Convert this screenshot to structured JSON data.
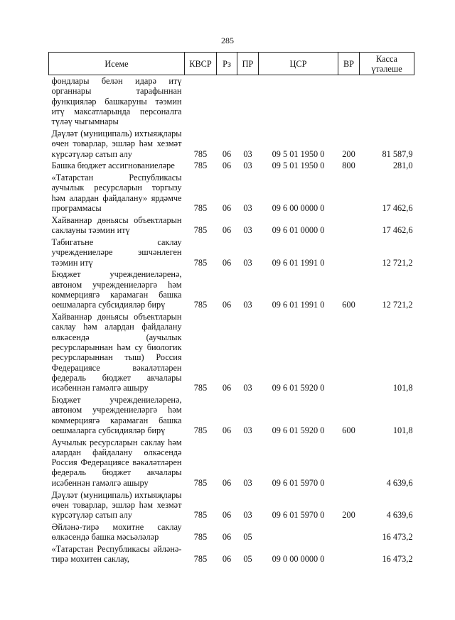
{
  "page_number": "285",
  "columns": [
    "Исеме",
    "КВСР",
    "Рз",
    "ПР",
    "ЦСР",
    "ВР",
    "Касса үтәлеше"
  ],
  "rows": [
    {
      "name": "фондлары белән идарә итү органнары тарафыннан функцияләр башкаруны тәэмин итү максатларында персоналга түләү чыгымнары",
      "kvsr": "",
      "rz": "",
      "pr": "",
      "csr": "",
      "vr": "",
      "sum": ""
    },
    {
      "name": "Дәүләт (муниципаль) ихтыяҗлары өчен товарлар, эшләр һәм хезмәт күрсәтүләр сатып алу",
      "kvsr": "785",
      "rz": "06",
      "pr": "03",
      "csr": "09 5 01 1950 0",
      "vr": "200",
      "sum": "81 587,9"
    },
    {
      "name": "Башка бюджет ассигнованиеләре",
      "kvsr": "785",
      "rz": "06",
      "pr": "03",
      "csr": "09 5 01 1950 0",
      "vr": "800",
      "sum": "281,0"
    },
    {
      "name": "«Татарстан Республикасы аучылык ресурсларын торгызу һәм алардан файдалану» ярдәмче программасы",
      "kvsr": "785",
      "rz": "06",
      "pr": "03",
      "csr": "09 6 00 0000 0",
      "vr": "",
      "sum": "17 462,6"
    },
    {
      "name": "Хайваннар дөньясы объектларын саклауны тәэмин итү",
      "kvsr": "785",
      "rz": "06",
      "pr": "03",
      "csr": "09 6 01 0000 0",
      "vr": "",
      "sum": "17 462,6"
    },
    {
      "name": "Табигатьне саклау учреждениеләре эшчәнлеген тәэмин итү",
      "kvsr": "785",
      "rz": "06",
      "pr": "03",
      "csr": "09 6 01 1991 0",
      "vr": "",
      "sum": "12 721,2"
    },
    {
      "name": "Бюджет учреждениеләренә, автоном учреждениеләргә һәм коммерциягә карамаган башка оешмаларга субсидияләр бирү",
      "kvsr": "785",
      "rz": "06",
      "pr": "03",
      "csr": "09 6 01 1991 0",
      "vr": "600",
      "sum": "12 721,2"
    },
    {
      "name": "Хайваннар дөньясы объектларын саклау һәм алардан файдалану өлкәсендә (аучылык ресурсларыннан һәм су биологик ресурсларыннан тыш) Россия Федерациясе вәкаләтләрен федераль бюджет акчалары исәбеннән гамәлгә ашыру",
      "kvsr": "785",
      "rz": "06",
      "pr": "03",
      "csr": "09 6 01 5920 0",
      "vr": "",
      "sum": "101,8"
    },
    {
      "name": "Бюджет учреждениеләренә, автоном учреждениеләргә һәм коммерциягә карамаган башка оешмаларга субсидияләр бирү",
      "kvsr": "785",
      "rz": "06",
      "pr": "03",
      "csr": "09 6 01 5920 0",
      "vr": "600",
      "sum": "101,8"
    },
    {
      "name": "Аучылык ресурсларын саклау һәм алардан файдалану өлкәсендә Россия Федерациясе вәкаләтләрен федераль бюджет акчалары исәбеннән гамәлгә ашыру",
      "kvsr": "785",
      "rz": "06",
      "pr": "03",
      "csr": "09 6 01 5970 0",
      "vr": "",
      "sum": "4 639,6"
    },
    {
      "name": "Дәүләт (муниципаль) ихтыяҗлары өчен товарлар, эшләр һәм хезмәт күрсәтүләр сатып алу",
      "kvsr": "785",
      "rz": "06",
      "pr": "03",
      "csr": "09 6 01 5970 0",
      "vr": "200",
      "sum": "4 639,6"
    },
    {
      "name": "Әйләнә-тирә мохитне саклау өлкәсендә башка мәсьәләләр",
      "kvsr": "785",
      "rz": "06",
      "pr": "05",
      "csr": "",
      "vr": "",
      "sum": "16 473,2"
    },
    {
      "name": "«Татарстан Республикасы әйләнә-тирә мохитен саклау,",
      "kvsr": "785",
      "rz": "06",
      "pr": "05",
      "csr": "09 0 00 0000 0",
      "vr": "",
      "sum": "16 473,2"
    }
  ]
}
